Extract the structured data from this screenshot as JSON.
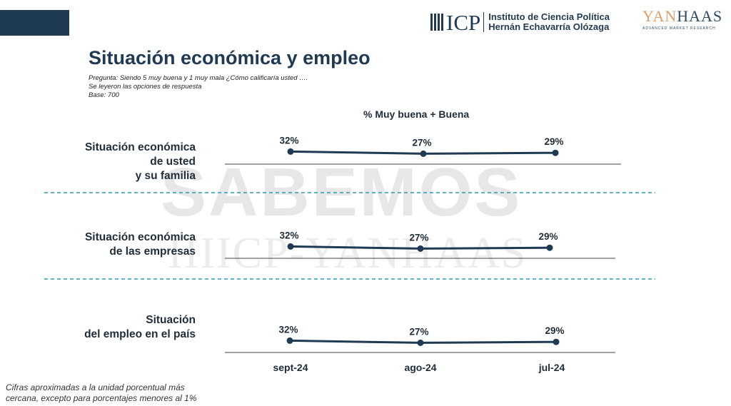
{
  "header": {
    "icp_logo_text": "ICP",
    "icp_name_line1": "Instituto de Ciencia Política",
    "icp_name_line2": "Hernán Echavarría Olózaga",
    "yanhaas_logo_text_a": "YAN",
    "yanhaas_logo_text_b": "HAAS",
    "yanhaas_tagline": "ADVANCED MARKET RESEARCH"
  },
  "title": "Situación económica y empleo",
  "question": "Pregunta: Siendo 5 muy buena y 1 muy mala ¿Cómo calificaría usted ….",
  "note": "Se leyeron las opciones de respuesta",
  "base": "Base: 700",
  "watermark": "SABEMOS",
  "watermark_2": "IIIICP-YANHAAS",
  "footnote_lines": [
    "Cifras aproximadas a la unidad porcentual más",
    "cercana, excepto para porcentajes menores al 1%"
  ],
  "colors": {
    "line": "#1f3a53",
    "divider": "#2a9bb0",
    "title": "#1f3a53"
  },
  "chart_data": {
    "type": "line",
    "title": "% Muy buena  + Buena",
    "categories": [
      "sept-24",
      "ago-24",
      "jul-24"
    ],
    "unit": "%",
    "panels": [
      {
        "label_lines": [
          "Situación económica",
          "de usted",
          "y su familia"
        ],
        "values": [
          32,
          27,
          29
        ],
        "value_labels": [
          "32%",
          "27%",
          "29%"
        ]
      },
      {
        "label_lines": [
          "Situación económica",
          "de las empresas"
        ],
        "values": [
          32,
          27,
          29
        ],
        "value_labels": [
          "32%",
          "27%",
          "29%"
        ]
      },
      {
        "label_lines": [
          "Situación",
          "del empleo en el país"
        ],
        "values": [
          32,
          27,
          29
        ],
        "value_labels": [
          "32%",
          "27%",
          "29%"
        ]
      }
    ],
    "separator": "dashed"
  }
}
